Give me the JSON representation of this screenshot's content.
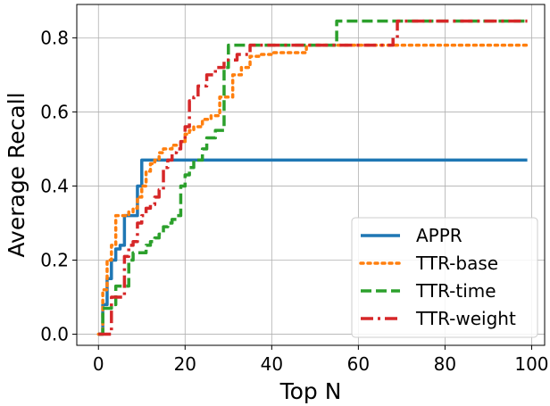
{
  "chart_data": {
    "type": "line",
    "xlabel": "Top N",
    "ylabel": "Average Recall",
    "xlim": [
      -5,
      103
    ],
    "ylim": [
      -0.03,
      0.89
    ],
    "xticks": [
      0,
      20,
      40,
      60,
      80,
      100
    ],
    "yticks": [
      0.0,
      0.2,
      0.4,
      0.6,
      0.8
    ],
    "xtick_labels": [
      "0",
      "20",
      "40",
      "60",
      "80",
      "100"
    ],
    "ytick_labels": [
      "0.0",
      "0.2",
      "0.4",
      "0.6",
      "0.8"
    ],
    "grid": true,
    "legend_position": "lower-right",
    "series": [
      {
        "name": "APPR",
        "color": "#1f77b4",
        "style": "solid",
        "x": [
          0,
          1,
          1,
          2,
          2,
          3,
          3,
          4,
          4,
          5,
          5,
          6,
          6,
          9,
          9,
          10,
          10,
          99
        ],
        "y": [
          0.0,
          0.0,
          0.08,
          0.08,
          0.15,
          0.15,
          0.2,
          0.2,
          0.23,
          0.23,
          0.24,
          0.24,
          0.32,
          0.32,
          0.4,
          0.4,
          0.47,
          0.47
        ]
      },
      {
        "name": "TTR-base",
        "color": "#ff7f0e",
        "style": "dotted",
        "x": [
          0,
          1,
          1,
          2,
          2,
          3,
          3,
          4,
          4,
          7,
          7,
          8,
          8,
          9,
          9,
          10,
          10,
          11,
          11,
          12,
          12,
          13,
          13,
          14,
          14,
          15,
          15,
          17,
          17,
          19,
          19,
          20,
          20,
          21,
          21,
          22,
          22,
          24,
          24,
          26,
          26,
          28,
          28,
          31,
          31,
          33,
          33,
          35,
          35,
          37,
          37,
          40,
          40,
          48,
          48,
          99
        ],
        "y": [
          0.0,
          0.0,
          0.12,
          0.12,
          0.2,
          0.2,
          0.24,
          0.24,
          0.32,
          0.32,
          0.33,
          0.33,
          0.34,
          0.34,
          0.37,
          0.37,
          0.4,
          0.4,
          0.44,
          0.44,
          0.46,
          0.46,
          0.47,
          0.47,
          0.49,
          0.49,
          0.5,
          0.5,
          0.51,
          0.51,
          0.52,
          0.52,
          0.54,
          0.54,
          0.55,
          0.55,
          0.56,
          0.56,
          0.58,
          0.58,
          0.59,
          0.59,
          0.64,
          0.64,
          0.7,
          0.7,
          0.72,
          0.72,
          0.75,
          0.75,
          0.755,
          0.755,
          0.76,
          0.76,
          0.78,
          0.78
        ]
      },
      {
        "name": "TTR-time",
        "color": "#2ca02c",
        "style": "dashed",
        "x": [
          0,
          1,
          1,
          3,
          3,
          4,
          4,
          7,
          7,
          8,
          8,
          11,
          11,
          12,
          12,
          13,
          13,
          14,
          14,
          15,
          15,
          16,
          16,
          17,
          17,
          18,
          18,
          19,
          19,
          20,
          20,
          21,
          21,
          22,
          22,
          24,
          24,
          25,
          25,
          27,
          27,
          29,
          29,
          30,
          30,
          55,
          55,
          99
        ],
        "y": [
          0.0,
          0.0,
          0.07,
          0.07,
          0.08,
          0.08,
          0.13,
          0.13,
          0.2,
          0.2,
          0.22,
          0.22,
          0.24,
          0.24,
          0.25,
          0.25,
          0.26,
          0.26,
          0.27,
          0.27,
          0.29,
          0.29,
          0.3,
          0.3,
          0.31,
          0.31,
          0.32,
          0.32,
          0.4,
          0.4,
          0.43,
          0.43,
          0.45,
          0.45,
          0.47,
          0.47,
          0.5,
          0.5,
          0.53,
          0.53,
          0.55,
          0.55,
          0.72,
          0.72,
          0.78,
          0.78,
          0.845,
          0.845
        ]
      },
      {
        "name": "TTR-weight",
        "color": "#d62728",
        "style": "dashdot",
        "x": [
          0,
          3,
          3,
          6,
          6,
          7,
          7,
          8,
          8,
          9,
          9,
          10,
          10,
          11,
          11,
          12,
          12,
          13,
          13,
          14,
          14,
          15,
          15,
          16,
          16,
          17,
          17,
          18,
          18,
          19,
          19,
          20,
          20,
          21,
          21,
          22,
          22,
          23,
          23,
          25,
          25,
          27,
          27,
          29,
          29,
          32,
          32,
          35,
          35,
          68,
          68,
          69,
          69,
          99
        ],
        "y": [
          0.0,
          0.0,
          0.1,
          0.1,
          0.21,
          0.21,
          0.24,
          0.24,
          0.25,
          0.25,
          0.3,
          0.3,
          0.32,
          0.32,
          0.34,
          0.34,
          0.35,
          0.35,
          0.37,
          0.37,
          0.39,
          0.39,
          0.45,
          0.45,
          0.47,
          0.47,
          0.49,
          0.49,
          0.5,
          0.5,
          0.52,
          0.52,
          0.56,
          0.56,
          0.63,
          0.63,
          0.64,
          0.64,
          0.67,
          0.67,
          0.7,
          0.7,
          0.72,
          0.72,
          0.74,
          0.74,
          0.755,
          0.755,
          0.78,
          0.78,
          0.8,
          0.8,
          0.845,
          0.845
        ]
      }
    ]
  }
}
